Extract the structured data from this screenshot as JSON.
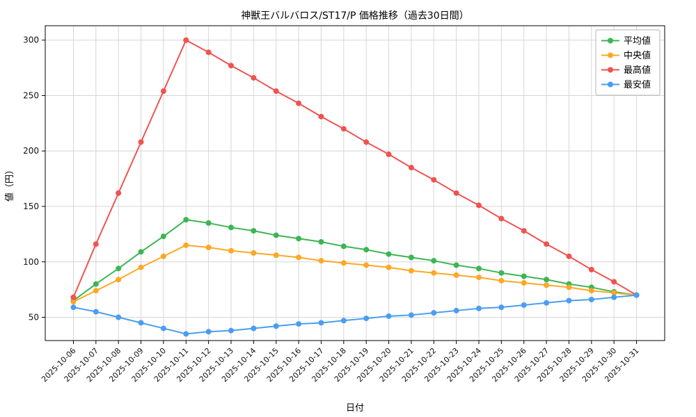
{
  "chart_data": {
    "type": "line",
    "title": "神獣王バルバロス/ST17/P 価格推移（過去30日間）",
    "xlabel": "日付",
    "ylabel": "値（円）",
    "x": [
      "2025-10-06",
      "2025-10-07",
      "2025-10-08",
      "2025-10-09",
      "2025-10-10",
      "2025-10-11",
      "2025-10-12",
      "2025-10-13",
      "2025-10-14",
      "2025-10-15",
      "2025-10-16",
      "2025-10-17",
      "2025-10-18",
      "2025-10-19",
      "2025-10-20",
      "2025-10-21",
      "2025-10-22",
      "2025-10-23",
      "2025-10-24",
      "2025-10-25",
      "2025-10-26",
      "2025-10-27",
      "2025-10-28",
      "2025-10-29",
      "2025-10-30",
      "2025-10-31"
    ],
    "series": [
      {
        "name": "平均値",
        "color": "#3cb554",
        "values": [
          65,
          80,
          94,
          109,
          123,
          138,
          135,
          131,
          128,
          124,
          121,
          118,
          114,
          111,
          107,
          104,
          101,
          97,
          94,
          90,
          87,
          84,
          80,
          77,
          73,
          70
        ]
      },
      {
        "name": "中央値",
        "color": "#ffa726",
        "values": [
          64,
          74,
          84,
          95,
          105,
          115,
          113,
          110,
          108,
          106,
          104,
          101,
          99,
          97,
          95,
          92,
          90,
          88,
          86,
          83,
          81,
          79,
          77,
          74,
          72,
          70
        ]
      },
      {
        "name": "最高値",
        "color": "#ef5350",
        "values": [
          68,
          116,
          162,
          208,
          254,
          300,
          289,
          277,
          266,
          254,
          243,
          231,
          220,
          208,
          197,
          185,
          174,
          162,
          151,
          139,
          128,
          116,
          105,
          93,
          82,
          70
        ]
      },
      {
        "name": "最安値",
        "color": "#4a9ef0",
        "values": [
          59,
          55,
          50,
          45,
          40,
          35,
          37,
          38,
          40,
          42,
          44,
          45,
          47,
          49,
          51,
          52,
          54,
          56,
          58,
          59,
          61,
          63,
          65,
          66,
          68,
          70
        ]
      }
    ],
    "yticks": [
      50,
      100,
      150,
      200,
      250,
      300
    ],
    "ylim": [
      29,
      313
    ],
    "grid": true,
    "legend_position": "upper right",
    "marker": "o"
  }
}
